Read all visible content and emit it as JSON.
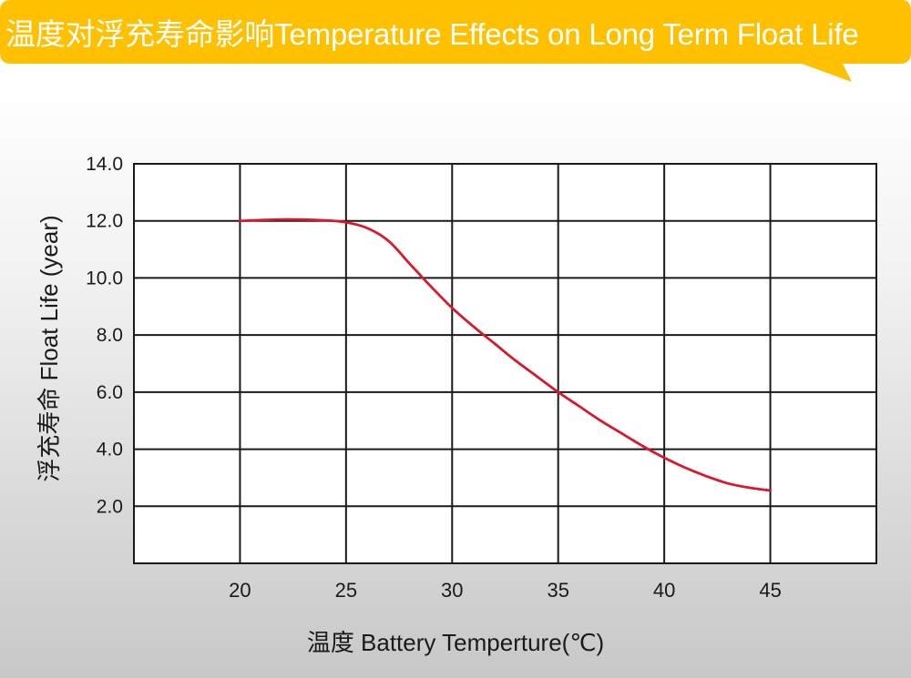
{
  "header": {
    "title": "温度对浮充寿命影响Temperature Effects on Long Term Float Life",
    "bubble_color": "#ffc000"
  },
  "chart_data": {
    "type": "line",
    "title": "温度对浮充寿命影响Temperature Effects on Long Term Float Life",
    "xlabel": "温度  Battery  Temperture(℃)",
    "ylabel": "浮充寿命  Float Life (year)",
    "xlim": [
      15,
      50
    ],
    "ylim": [
      0,
      14
    ],
    "x_ticks": [
      20,
      25,
      30,
      35,
      40,
      45
    ],
    "x_tick_labels": [
      "20",
      "25",
      "30",
      "35",
      "40",
      "45"
    ],
    "y_ticks": [
      2,
      4,
      6,
      8,
      10,
      12,
      14
    ],
    "y_tick_labels": [
      "2.0",
      "4.0",
      "6.0",
      "8.0",
      "10.0",
      "12.0",
      "14.0"
    ],
    "grid": true,
    "series": [
      {
        "color": "#d7192b",
        "x": [
          20,
          22,
          24,
          25,
          26,
          27,
          28,
          29,
          30,
          31,
          32,
          33,
          34,
          35,
          36,
          37,
          38,
          39,
          40,
          41,
          42,
          43,
          44,
          45
        ],
        "y": [
          12.0,
          12.05,
          12.02,
          11.95,
          11.75,
          11.3,
          10.5,
          9.7,
          8.95,
          8.3,
          7.7,
          7.1,
          6.55,
          6.0,
          5.5,
          5.0,
          4.55,
          4.1,
          3.7,
          3.35,
          3.05,
          2.8,
          2.65,
          2.55
        ]
      }
    ]
  }
}
